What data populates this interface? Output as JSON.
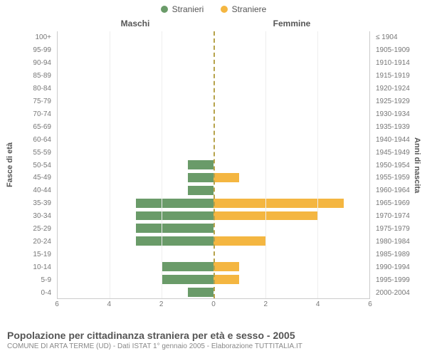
{
  "chart": {
    "type": "pyramid-bar",
    "background_color": "#ffffff",
    "grid_color": "#eeeeee",
    "border_color": "#cccccc",
    "center_line_color": "#b6a24a",
    "legend": [
      {
        "label": "Stranieri",
        "color": "#6a9b69"
      },
      {
        "label": "Straniere",
        "color": "#f4b641"
      }
    ],
    "region_labels": {
      "left": "Maschi",
      "right": "Femmine"
    },
    "y_left": {
      "title": "Fasce di età",
      "labels": [
        "100+",
        "95-99",
        "90-94",
        "85-89",
        "80-84",
        "75-79",
        "70-74",
        "65-69",
        "60-64",
        "55-59",
        "50-54",
        "45-49",
        "40-44",
        "35-39",
        "30-34",
        "25-29",
        "20-24",
        "15-19",
        "10-14",
        "5-9",
        "0-4"
      ]
    },
    "y_right": {
      "title": "Anni di nascita",
      "labels": [
        "≤ 1904",
        "1905-1909",
        "1910-1914",
        "1915-1919",
        "1920-1924",
        "1925-1929",
        "1930-1934",
        "1935-1939",
        "1940-1944",
        "1945-1949",
        "1950-1954",
        "1955-1959",
        "1960-1964",
        "1965-1969",
        "1970-1974",
        "1975-1979",
        "1980-1984",
        "1985-1989",
        "1990-1994",
        "1995-1999",
        "2000-2004"
      ]
    },
    "x": {
      "max": 6,
      "tick_step": 2,
      "tick_labels_left": [
        "6",
        "4",
        "2"
      ],
      "tick_center": "0",
      "tick_labels_right": [
        "2",
        "4",
        "6"
      ]
    },
    "series": {
      "left_color": "#6a9b69",
      "right_color": "#f4b641",
      "rows": [
        {
          "left": 0,
          "right": 0
        },
        {
          "left": 0,
          "right": 0
        },
        {
          "left": 0,
          "right": 0
        },
        {
          "left": 0,
          "right": 0
        },
        {
          "left": 0,
          "right": 0
        },
        {
          "left": 0,
          "right": 0
        },
        {
          "left": 0,
          "right": 0
        },
        {
          "left": 0,
          "right": 0
        },
        {
          "left": 0,
          "right": 0
        },
        {
          "left": 0,
          "right": 0
        },
        {
          "left": 1,
          "right": 0
        },
        {
          "left": 1,
          "right": 1
        },
        {
          "left": 1,
          "right": 0
        },
        {
          "left": 3,
          "right": 5
        },
        {
          "left": 3,
          "right": 4
        },
        {
          "left": 3,
          "right": 0
        },
        {
          "left": 3,
          "right": 2
        },
        {
          "left": 0,
          "right": 0
        },
        {
          "left": 2,
          "right": 1
        },
        {
          "left": 2,
          "right": 1
        },
        {
          "left": 1,
          "right": 0
        }
      ]
    },
    "caption": {
      "title": "Popolazione per cittadinanza straniera per età e sesso - 2005",
      "subtitle": "COMUNE DI ARTA TERME (UD) - Dati ISTAT 1° gennaio 2005 - Elaborazione TUTTITALIA.IT"
    },
    "font": {
      "axis_label_size": 10,
      "title_size": 14,
      "legend_size": 12
    }
  }
}
